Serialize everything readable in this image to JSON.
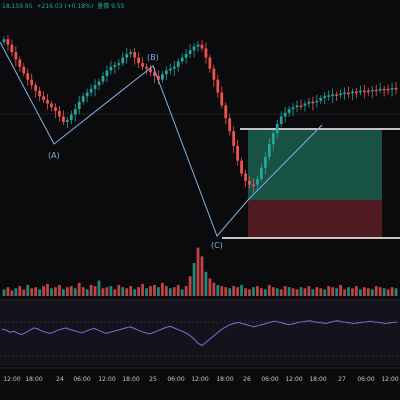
{
  "readout": {
    "ohlc": "18,159.95",
    "change": "+216.03 (+0.18%)",
    "volume_label": "量價",
    "volume_value": "9.55"
  },
  "wave_labels": [
    "(A)",
    "(B)",
    "(C)"
  ],
  "x_axis_labels": [
    "12:00",
    "18:00",
    "24",
    "06:00",
    "12:00",
    "18:00",
    "25",
    "06:00",
    "12:00",
    "18:00",
    "26",
    "06:00",
    "12:00",
    "18:00",
    "27",
    "06:00",
    "12:00"
  ],
  "colors": {
    "background": "#0b0b0d",
    "up": "#26a69a",
    "down": "#ef5350",
    "wave_line": "#7fb1e6",
    "oscillator": "#7c6fd8",
    "profit_zone": "#1e6b57",
    "loss_zone": "#5c1f24"
  },
  "chart_data": {
    "type": "candlestick",
    "price_series_close": [
      60,
      66,
      74,
      82,
      90,
      97,
      104,
      110,
      116,
      122,
      126,
      130,
      134,
      138,
      144,
      150,
      148,
      142,
      136,
      128,
      122,
      118,
      114,
      110,
      106,
      100,
      94,
      90,
      88,
      86,
      80,
      76,
      74,
      80,
      86,
      90,
      92,
      96,
      100,
      104,
      98,
      94,
      92,
      90,
      84,
      80,
      76,
      72,
      68,
      66,
      70,
      80,
      92,
      104,
      118,
      132,
      146,
      160,
      176,
      192,
      206,
      214,
      218,
      218,
      212,
      200,
      188,
      174,
      162,
      152,
      144,
      140,
      136,
      134,
      132,
      132,
      130,
      128,
      128,
      127,
      124,
      122,
      121,
      120,
      120,
      119,
      118,
      118,
      117,
      117,
      116,
      116,
      116,
      115,
      115,
      114,
      114,
      114,
      113,
      113
    ],
    "volume": [
      6,
      8,
      5,
      7,
      9,
      6,
      10,
      7,
      8,
      6,
      9,
      11,
      7,
      8,
      10,
      6,
      8,
      9,
      7,
      12,
      8,
      6,
      10,
      9,
      14,
      7,
      8,
      9,
      6,
      10,
      8,
      7,
      9,
      6,
      8,
      11,
      7,
      9,
      10,
      8,
      12,
      9,
      7,
      8,
      10,
      6,
      9,
      18,
      30,
      44,
      36,
      22,
      16,
      12,
      10,
      9,
      8,
      7,
      9,
      8,
      10,
      7,
      6,
      8,
      9,
      7,
      6,
      10,
      8,
      7,
      6,
      9,
      8,
      7,
      6,
      8,
      7,
      9,
      6,
      8,
      7,
      6,
      9,
      8,
      7,
      10,
      6,
      8,
      7,
      9,
      6,
      8,
      7,
      6,
      9,
      8,
      7,
      6,
      8,
      7
    ],
    "oscillator": [
      20,
      18,
      14,
      16,
      12,
      10,
      14,
      18,
      22,
      20,
      16,
      14,
      12,
      15,
      18,
      20,
      22,
      19,
      17,
      15,
      13,
      16,
      19,
      21,
      18,
      15,
      12,
      14,
      16,
      18,
      20,
      22,
      24,
      21,
      18,
      15,
      13,
      11,
      14,
      17,
      20,
      23,
      25,
      22,
      19,
      16,
      13,
      8,
      2,
      -6,
      -10,
      -4,
      2,
      8,
      14,
      20,
      24,
      28,
      30,
      32,
      30,
      28,
      26,
      24,
      26,
      28,
      30,
      32,
      34,
      33,
      31,
      29,
      28,
      30,
      32,
      33,
      34,
      35,
      33,
      32,
      31,
      30,
      32,
      34,
      35,
      33,
      32,
      31,
      30,
      31,
      32,
      33,
      34,
      33,
      32,
      31,
      30,
      31,
      32,
      33
    ]
  }
}
